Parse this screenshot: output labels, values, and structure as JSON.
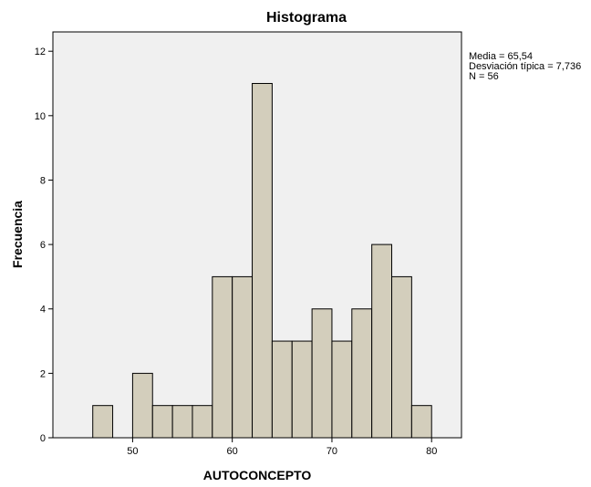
{
  "chart_data": {
    "type": "bar",
    "title": "Histograma",
    "xlabel": "AUTOCONCEPTO",
    "ylabel": "Frecuencia",
    "xlim": [
      42,
      83
    ],
    "ylim": [
      0,
      12.6
    ],
    "bin_width": 2,
    "x_ticks": [
      50,
      60,
      70,
      80
    ],
    "y_ticks": [
      0,
      2,
      4,
      6,
      8,
      10,
      12
    ],
    "bins": [
      {
        "start": 46,
        "count": 1
      },
      {
        "start": 48,
        "count": 0
      },
      {
        "start": 50,
        "count": 2
      },
      {
        "start": 52,
        "count": 1
      },
      {
        "start": 54,
        "count": 1
      },
      {
        "start": 56,
        "count": 1
      },
      {
        "start": 58,
        "count": 5
      },
      {
        "start": 60,
        "count": 5
      },
      {
        "start": 62,
        "count": 11
      },
      {
        "start": 64,
        "count": 3
      },
      {
        "start": 66,
        "count": 3
      },
      {
        "start": 68,
        "count": 4
      },
      {
        "start": 70,
        "count": 3
      },
      {
        "start": 72,
        "count": 4
      },
      {
        "start": 74,
        "count": 6
      },
      {
        "start": 76,
        "count": 5
      },
      {
        "start": 78,
        "count": 1
      }
    ],
    "stats": [
      "Media = 65,54",
      "Desviación típica = 7,736",
      "N = 56"
    ],
    "colors": {
      "plot_bg": "#f0f0f0",
      "bar_fill": "#d3cebc",
      "bar_stroke": "#000000",
      "axis": "#000000"
    },
    "grid": false
  }
}
